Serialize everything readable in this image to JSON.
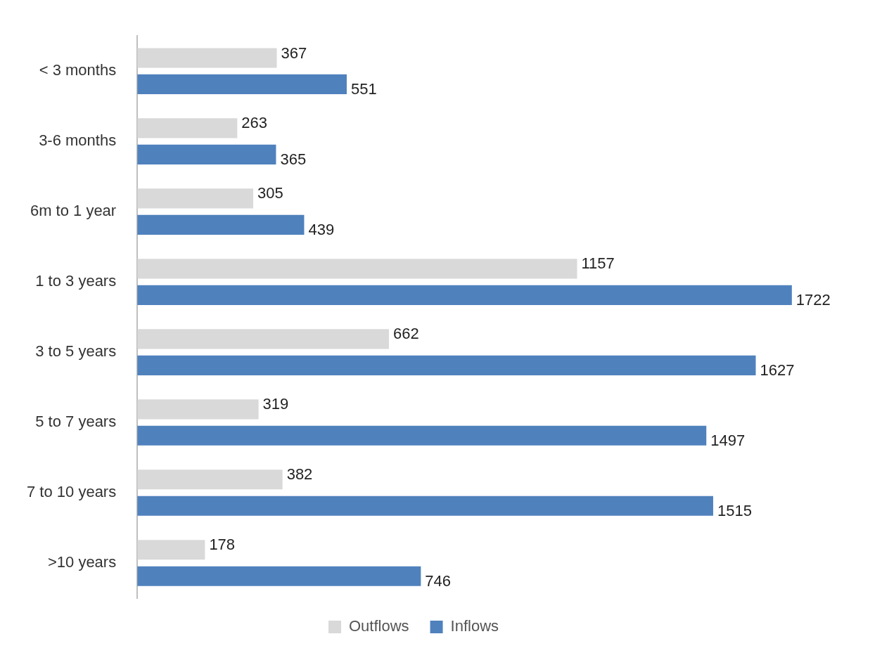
{
  "chart_data": {
    "type": "bar",
    "orientation": "horizontal",
    "categories": [
      "< 3 months",
      "3-6 months",
      "6m to 1 year",
      "1 to 3 years",
      "3 to 5 years",
      "5 to 7 years",
      "7 to 10 years",
      ">10 years"
    ],
    "series": [
      {
        "name": "Outflows",
        "color": "#d9d9d9",
        "values": [
          367,
          263,
          305,
          1157,
          662,
          319,
          382,
          178
        ]
      },
      {
        "name": "Inflows",
        "color": "#4f81bd",
        "values": [
          551,
          365,
          439,
          1722,
          1627,
          1497,
          1515,
          746
        ]
      }
    ],
    "data_labels": true,
    "legend": "bottom"
  }
}
